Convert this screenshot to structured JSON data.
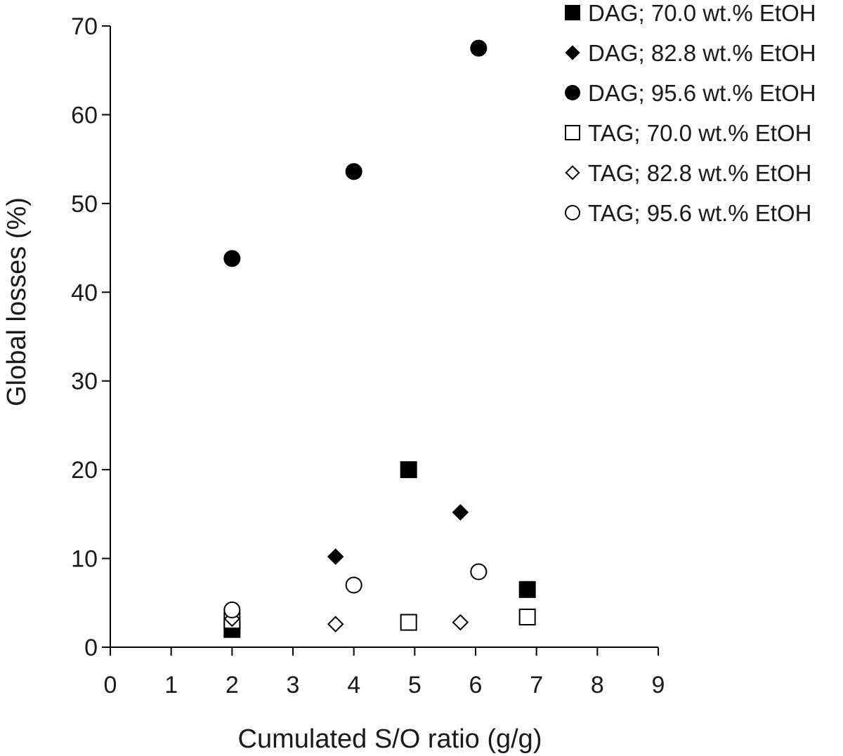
{
  "chart_data": {
    "type": "scatter",
    "title": "",
    "xlabel": "Cumulated S/O ratio (g/g)",
    "ylabel": "Global losses (%)",
    "xlim": [
      0,
      9
    ],
    "ylim": [
      0,
      70
    ],
    "xticks": [
      0,
      1,
      2,
      3,
      4,
      5,
      6,
      7,
      8,
      9
    ],
    "yticks": [
      0,
      10,
      20,
      30,
      40,
      50,
      60,
      70
    ],
    "grid": false,
    "legend_position": "top-right",
    "series": [
      {
        "name": "DAG; 70.0 wt.% EtOH",
        "marker": "square",
        "filled": true,
        "x": [
          2.0,
          4.9,
          6.85
        ],
        "y": [
          2.0,
          20.0,
          6.5
        ]
      },
      {
        "name": "DAG; 82.8 wt.% EtOH",
        "marker": "diamond",
        "filled": true,
        "x": [
          3.7,
          5.75
        ],
        "y": [
          10.2,
          15.2
        ]
      },
      {
        "name": "DAG; 95.6 wt.% EtOH",
        "marker": "circle",
        "filled": true,
        "x": [
          2.0,
          4.0,
          6.05
        ],
        "y": [
          43.8,
          53.6,
          67.5
        ]
      },
      {
        "name": "TAG; 70.0 wt.% EtOH",
        "marker": "square",
        "filled": false,
        "x": [
          2.0,
          4.9,
          6.85
        ],
        "y": [
          3.0,
          2.8,
          3.4
        ]
      },
      {
        "name": "TAG; 82.8 wt.% EtOH",
        "marker": "diamond",
        "filled": false,
        "x": [
          2.0,
          3.7,
          5.75
        ],
        "y": [
          3.2,
          2.6,
          2.8
        ]
      },
      {
        "name": "TAG; 95.6 wt.% EtOH",
        "marker": "circle",
        "filled": false,
        "x": [
          2.0,
          4.0,
          6.05
        ],
        "y": [
          4.2,
          7.0,
          8.5
        ]
      }
    ]
  }
}
